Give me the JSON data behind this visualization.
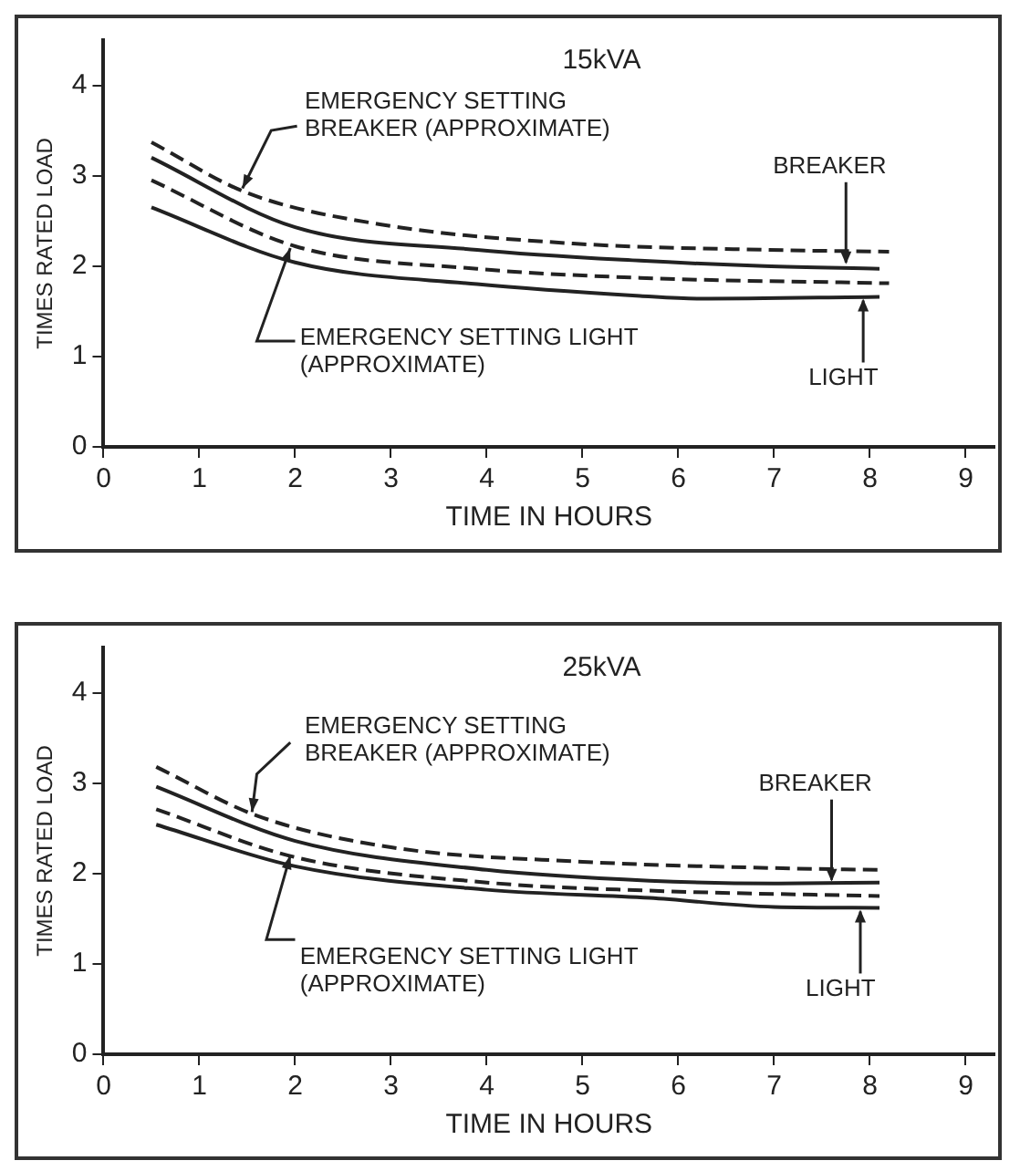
{
  "chart_data": [
    {
      "type": "line",
      "title": "15kVA",
      "xlabel": "TIME IN HOURS",
      "ylabel": "TIMES RATED LOAD",
      "xlim": [
        0,
        9.3
      ],
      "ylim": [
        0,
        4.5
      ],
      "xticks": [
        0,
        1,
        2,
        3,
        4,
        5,
        6,
        7,
        8,
        9
      ],
      "yticks": [
        0,
        1,
        2,
        3,
        4
      ],
      "grid": false,
      "legend": false,
      "marker": "none",
      "annotations": [
        {
          "text": "BREAKER",
          "x": 7.75,
          "y": 2.0
        },
        {
          "text": "LIGHT",
          "x": 7.93,
          "y": 1.66
        }
      ],
      "series": [
        {
          "name": "EMERGENCY SETTING BREAKER (APPROXIMATE)",
          "color": "#222222",
          "line_style": "dashed",
          "x": [
            0.5,
            1.5,
            2.9,
            4.9,
            6.9,
            8.2
          ],
          "values": [
            3.37,
            2.81,
            2.46,
            2.25,
            2.18,
            2.16
          ]
        },
        {
          "color": "#222222",
          "line_style": "solid",
          "x": [
            0.5,
            2,
            3.9,
            5.6,
            6.9,
            8.1
          ],
          "values": [
            3.2,
            2.43,
            2.18,
            2.06,
            2.0,
            1.97
          ]
        },
        {
          "name": "EMERGENCY SETTING LIGHT (APPROXIMATE)",
          "color": "#222222",
          "line_style": "dashed",
          "x": [
            0.5,
            2,
            3.9,
            5.6,
            8.2
          ],
          "values": [
            2.95,
            2.22,
            1.97,
            1.87,
            1.81
          ]
        },
        {
          "color": "#222222",
          "line_style": "solid",
          "x": [
            0.5,
            2,
            3.9,
            5.6,
            6.2,
            8.1
          ],
          "values": [
            2.65,
            2.04,
            1.8,
            1.67,
            1.64,
            1.66
          ]
        }
      ]
    },
    {
      "type": "line",
      "title": "25kVA",
      "xlabel": "TIME IN HOURS",
      "ylabel": "TIMES RATED LOAD",
      "xlim": [
        0,
        9.3
      ],
      "ylim": [
        0,
        4.5
      ],
      "xticks": [
        0,
        1,
        2,
        3,
        4,
        5,
        6,
        7,
        8,
        9
      ],
      "yticks": [
        0,
        1,
        2,
        3,
        4
      ],
      "grid": false,
      "legend": false,
      "marker": "none",
      "annotations": [
        {
          "text": "BREAKER",
          "x": 7.6,
          "y": 1.89
        },
        {
          "text": "LIGHT",
          "x": 7.9,
          "y": 1.62
        }
      ],
      "series": [
        {
          "name": "EMERGENCY SETTING BREAKER (APPROXIMATE)",
          "color": "#222222",
          "line_style": "dashed",
          "x": [
            0.55,
            1.6,
            3.0,
            5.0,
            7.0,
            8.1
          ],
          "values": [
            3.18,
            2.64,
            2.29,
            2.13,
            2.06,
            2.04
          ]
        },
        {
          "color": "#222222",
          "line_style": "solid",
          "x": [
            0.55,
            2,
            4,
            5.7,
            7,
            8.1
          ],
          "values": [
            2.96,
            2.36,
            2.04,
            1.92,
            1.89,
            1.9
          ]
        },
        {
          "name": "EMERGENCY SETTING LIGHT (APPROXIMATE)",
          "color": "#222222",
          "line_style": "dashed",
          "x": [
            0.55,
            2,
            4,
            5.7,
            8.1
          ],
          "values": [
            2.71,
            2.18,
            1.9,
            1.81,
            1.75
          ]
        },
        {
          "color": "#222222",
          "line_style": "solid",
          "x": [
            0.55,
            2,
            4,
            5.7,
            7,
            8.1
          ],
          "values": [
            2.54,
            2.08,
            1.82,
            1.73,
            1.63,
            1.62
          ]
        }
      ]
    }
  ]
}
